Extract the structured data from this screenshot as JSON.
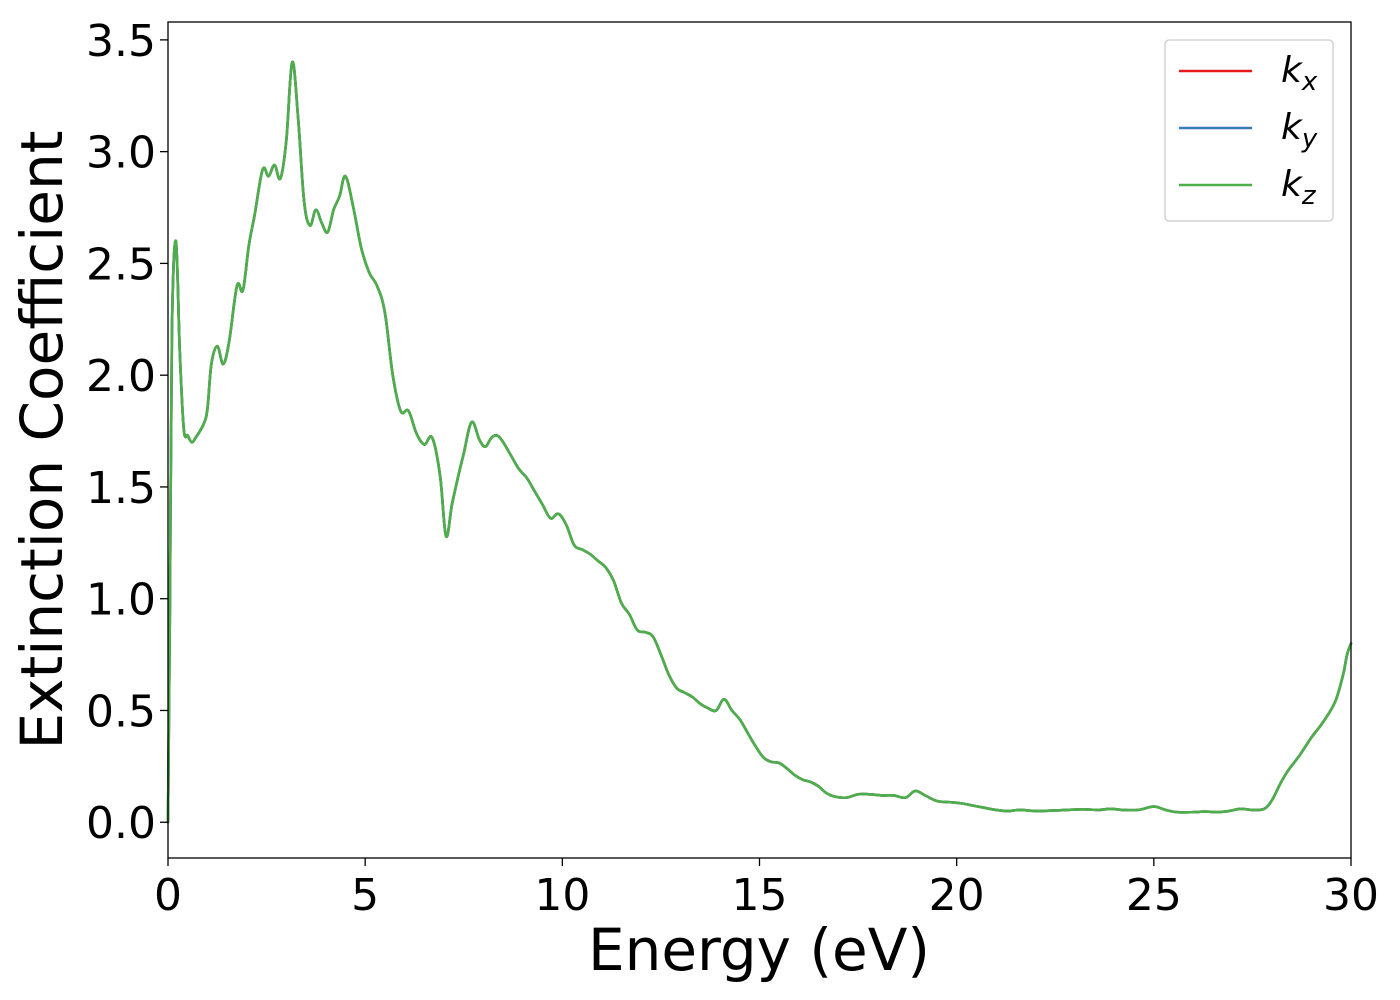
{
  "chart_data": {
    "type": "line",
    "title": "",
    "xlabel": "Energy (eV)",
    "ylabel": "Extinction Coefficient",
    "xlim": [
      0,
      30
    ],
    "ylim": [
      -0.16,
      3.58
    ],
    "xticks": [
      0,
      5,
      10,
      15,
      20,
      25,
      30
    ],
    "xtick_labels": [
      "0",
      "5",
      "10",
      "15",
      "20",
      "25",
      "30"
    ],
    "yticks": [
      0.0,
      0.5,
      1.0,
      1.5,
      2.0,
      2.5,
      3.0,
      3.5
    ],
    "ytick_labels": [
      "0.0",
      "0.5",
      "1.0",
      "1.5",
      "2.0",
      "2.5",
      "3.0",
      "3.5"
    ],
    "grid": false,
    "legend_position": "top-right",
    "x": [
      0,
      0.05,
      0.1,
      0.2,
      0.3,
      0.4,
      0.5,
      0.6,
      0.7,
      0.9,
      1.0,
      1.1,
      1.25,
      1.4,
      1.55,
      1.75,
      1.9,
      2.05,
      2.2,
      2.4,
      2.55,
      2.7,
      2.85,
      3.0,
      3.15,
      3.3,
      3.45,
      3.6,
      3.75,
      3.9,
      4.05,
      4.2,
      4.35,
      4.5,
      4.7,
      4.9,
      5.1,
      5.3,
      5.5,
      5.7,
      5.9,
      6.1,
      6.3,
      6.5,
      6.7,
      6.9,
      7.05,
      7.2,
      7.35,
      7.5,
      7.7,
      7.9,
      8.05,
      8.2,
      8.35,
      8.5,
      8.7,
      8.9,
      9.1,
      9.3,
      9.5,
      9.7,
      9.9,
      10.1,
      10.3,
      10.5,
      10.7,
      10.9,
      11.1,
      11.3,
      11.5,
      11.7,
      11.9,
      12.1,
      12.3,
      12.5,
      12.7,
      12.9,
      13.1,
      13.3,
      13.5,
      13.7,
      13.9,
      14.1,
      14.3,
      14.5,
      14.7,
      14.9,
      15.1,
      15.3,
      15.5,
      15.7,
      15.9,
      16.1,
      16.3,
      16.5,
      16.7,
      16.9,
      17.2,
      17.5,
      17.8,
      18.1,
      18.4,
      18.7,
      18.95,
      19.2,
      19.5,
      19.8,
      20.1,
      20.4,
      20.7,
      21.0,
      21.3,
      21.6,
      22.0,
      22.4,
      22.8,
      23.2,
      23.6,
      23.9,
      24.2,
      24.6,
      25.0,
      25.3,
      25.6,
      26.0,
      26.3,
      26.6,
      26.9,
      27.2,
      27.5,
      27.8,
      28.0,
      28.2,
      28.4,
      28.7,
      29.0,
      29.3,
      29.6,
      29.8,
      29.9,
      30.0
    ],
    "series": [
      {
        "name": "k_x",
        "label_main": "k",
        "label_sub": "x",
        "color": "#e41a1c",
        "values": [
          0.0,
          1.0,
          2.2,
          2.6,
          2.1,
          1.76,
          1.73,
          1.7,
          1.72,
          1.78,
          1.85,
          2.05,
          2.13,
          2.05,
          2.15,
          2.4,
          2.38,
          2.58,
          2.72,
          2.92,
          2.89,
          2.94,
          2.88,
          3.05,
          3.4,
          3.15,
          2.78,
          2.67,
          2.74,
          2.68,
          2.64,
          2.74,
          2.8,
          2.89,
          2.75,
          2.57,
          2.46,
          2.4,
          2.28,
          2.0,
          1.84,
          1.84,
          1.74,
          1.69,
          1.72,
          1.55,
          1.28,
          1.42,
          1.54,
          1.65,
          1.79,
          1.71,
          1.68,
          1.72,
          1.73,
          1.7,
          1.64,
          1.58,
          1.54,
          1.48,
          1.42,
          1.36,
          1.38,
          1.33,
          1.24,
          1.22,
          1.2,
          1.17,
          1.14,
          1.08,
          0.98,
          0.93,
          0.86,
          0.85,
          0.83,
          0.75,
          0.66,
          0.6,
          0.58,
          0.56,
          0.53,
          0.51,
          0.5,
          0.55,
          0.5,
          0.46,
          0.4,
          0.34,
          0.29,
          0.27,
          0.265,
          0.24,
          0.21,
          0.19,
          0.18,
          0.16,
          0.13,
          0.115,
          0.11,
          0.125,
          0.125,
          0.12,
          0.12,
          0.11,
          0.14,
          0.12,
          0.095,
          0.09,
          0.085,
          0.075,
          0.065,
          0.055,
          0.05,
          0.055,
          0.05,
          0.052,
          0.055,
          0.058,
          0.055,
          0.06,
          0.055,
          0.055,
          0.07,
          0.055,
          0.045,
          0.045,
          0.048,
          0.045,
          0.05,
          0.06,
          0.055,
          0.06,
          0.1,
          0.17,
          0.23,
          0.3,
          0.38,
          0.45,
          0.54,
          0.66,
          0.75,
          0.8
        ]
      },
      {
        "name": "k_y",
        "label_main": "k",
        "label_sub": "y",
        "color": "#377eb8",
        "values": [
          0.0,
          1.0,
          2.2,
          2.6,
          2.1,
          1.76,
          1.73,
          1.7,
          1.72,
          1.78,
          1.85,
          2.05,
          2.13,
          2.05,
          2.15,
          2.4,
          2.38,
          2.58,
          2.72,
          2.92,
          2.89,
          2.94,
          2.88,
          3.05,
          3.4,
          3.15,
          2.78,
          2.67,
          2.74,
          2.68,
          2.64,
          2.74,
          2.8,
          2.89,
          2.75,
          2.57,
          2.46,
          2.4,
          2.28,
          2.0,
          1.84,
          1.84,
          1.74,
          1.69,
          1.72,
          1.55,
          1.28,
          1.42,
          1.54,
          1.65,
          1.79,
          1.71,
          1.68,
          1.72,
          1.73,
          1.7,
          1.64,
          1.58,
          1.54,
          1.48,
          1.42,
          1.36,
          1.38,
          1.33,
          1.24,
          1.22,
          1.2,
          1.17,
          1.14,
          1.08,
          0.98,
          0.93,
          0.86,
          0.85,
          0.83,
          0.75,
          0.66,
          0.6,
          0.58,
          0.56,
          0.53,
          0.51,
          0.5,
          0.55,
          0.5,
          0.46,
          0.4,
          0.34,
          0.29,
          0.27,
          0.265,
          0.24,
          0.21,
          0.19,
          0.18,
          0.16,
          0.13,
          0.115,
          0.11,
          0.125,
          0.125,
          0.12,
          0.12,
          0.11,
          0.14,
          0.12,
          0.095,
          0.09,
          0.085,
          0.075,
          0.065,
          0.055,
          0.05,
          0.055,
          0.05,
          0.052,
          0.055,
          0.058,
          0.055,
          0.06,
          0.055,
          0.055,
          0.07,
          0.055,
          0.045,
          0.045,
          0.048,
          0.045,
          0.05,
          0.06,
          0.055,
          0.06,
          0.1,
          0.17,
          0.23,
          0.3,
          0.38,
          0.45,
          0.54,
          0.66,
          0.75,
          0.8
        ]
      },
      {
        "name": "k_z",
        "label_main": "k",
        "label_sub": "z",
        "color": "#4daf4a",
        "values": [
          0.0,
          1.0,
          2.2,
          2.6,
          2.1,
          1.76,
          1.73,
          1.7,
          1.72,
          1.78,
          1.85,
          2.05,
          2.13,
          2.05,
          2.15,
          2.4,
          2.38,
          2.58,
          2.72,
          2.92,
          2.89,
          2.94,
          2.88,
          3.05,
          3.4,
          3.15,
          2.78,
          2.67,
          2.74,
          2.68,
          2.64,
          2.74,
          2.8,
          2.89,
          2.75,
          2.57,
          2.46,
          2.4,
          2.28,
          2.0,
          1.84,
          1.84,
          1.74,
          1.69,
          1.72,
          1.55,
          1.28,
          1.42,
          1.54,
          1.65,
          1.79,
          1.71,
          1.68,
          1.72,
          1.73,
          1.7,
          1.64,
          1.58,
          1.54,
          1.48,
          1.42,
          1.36,
          1.38,
          1.33,
          1.24,
          1.22,
          1.2,
          1.17,
          1.14,
          1.08,
          0.98,
          0.93,
          0.86,
          0.85,
          0.83,
          0.75,
          0.66,
          0.6,
          0.58,
          0.56,
          0.53,
          0.51,
          0.5,
          0.55,
          0.5,
          0.46,
          0.4,
          0.34,
          0.29,
          0.27,
          0.265,
          0.24,
          0.21,
          0.19,
          0.18,
          0.16,
          0.13,
          0.115,
          0.11,
          0.125,
          0.125,
          0.12,
          0.12,
          0.11,
          0.14,
          0.12,
          0.095,
          0.09,
          0.085,
          0.075,
          0.065,
          0.055,
          0.05,
          0.055,
          0.05,
          0.052,
          0.055,
          0.058,
          0.055,
          0.06,
          0.055,
          0.055,
          0.07,
          0.055,
          0.045,
          0.045,
          0.048,
          0.045,
          0.05,
          0.06,
          0.055,
          0.06,
          0.1,
          0.17,
          0.23,
          0.3,
          0.38,
          0.45,
          0.54,
          0.66,
          0.75,
          0.8
        ]
      }
    ]
  }
}
